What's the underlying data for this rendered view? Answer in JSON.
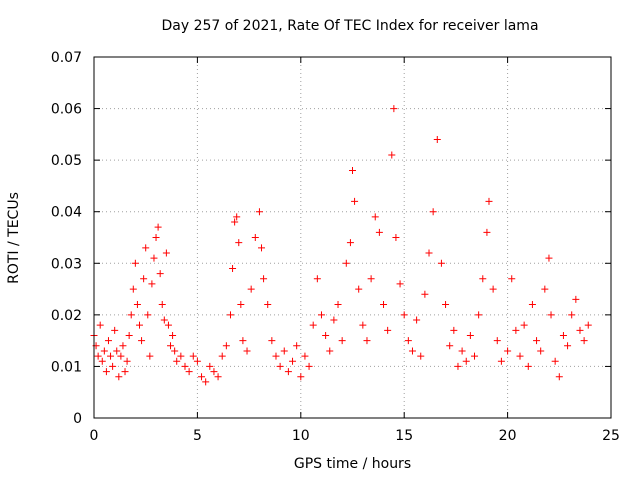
{
  "chart_data": {
    "type": "scatter",
    "title": "Day 257 of 2021, Rate Of TEC Index for receiver lama",
    "xlabel": "GPS time / hours",
    "ylabel": "ROTI / TECUs",
    "xlim": [
      0,
      25
    ],
    "ylim": [
      0,
      0.07
    ],
    "x_ticks": [
      0,
      5,
      10,
      15,
      20,
      25
    ],
    "x_tick_labels": [
      "0",
      "5",
      "10",
      "15",
      "20",
      "25"
    ],
    "y_ticks": [
      0,
      0.01,
      0.02,
      0.03,
      0.04,
      0.05,
      0.06,
      0.07
    ],
    "y_tick_labels": [
      "0",
      "0.01",
      "0.02",
      "0.03",
      "0.04",
      "0.05",
      "0.06",
      "0.07"
    ],
    "grid": true,
    "marker": "plus",
    "color": "#ff0000",
    "series": [
      {
        "name": "",
        "points": [
          [
            0.0,
            0.016
          ],
          [
            0.1,
            0.014
          ],
          [
            0.2,
            0.012
          ],
          [
            0.3,
            0.018
          ],
          [
            0.4,
            0.011
          ],
          [
            0.5,
            0.013
          ],
          [
            0.6,
            0.009
          ],
          [
            0.7,
            0.015
          ],
          [
            0.8,
            0.012
          ],
          [
            0.9,
            0.01
          ],
          [
            1.0,
            0.017
          ],
          [
            1.1,
            0.013
          ],
          [
            1.2,
            0.008
          ],
          [
            1.3,
            0.012
          ],
          [
            1.4,
            0.014
          ],
          [
            1.5,
            0.009
          ],
          [
            1.6,
            0.011
          ],
          [
            1.7,
            0.016
          ],
          [
            1.8,
            0.02
          ],
          [
            1.9,
            0.025
          ],
          [
            2.0,
            0.03
          ],
          [
            2.1,
            0.022
          ],
          [
            2.2,
            0.018
          ],
          [
            2.3,
            0.015
          ],
          [
            2.4,
            0.027
          ],
          [
            2.5,
            0.033
          ],
          [
            2.6,
            0.02
          ],
          [
            2.7,
            0.012
          ],
          [
            2.8,
            0.026
          ],
          [
            2.9,
            0.031
          ],
          [
            3.0,
            0.035
          ],
          [
            3.1,
            0.037
          ],
          [
            3.2,
            0.028
          ],
          [
            3.3,
            0.022
          ],
          [
            3.4,
            0.019
          ],
          [
            3.5,
            0.032
          ],
          [
            3.6,
            0.018
          ],
          [
            3.7,
            0.014
          ],
          [
            3.8,
            0.016
          ],
          [
            3.9,
            0.013
          ],
          [
            4.0,
            0.011
          ],
          [
            4.2,
            0.012
          ],
          [
            4.4,
            0.01
          ],
          [
            4.6,
            0.009
          ],
          [
            4.8,
            0.012
          ],
          [
            5.0,
            0.011
          ],
          [
            5.2,
            0.008
          ],
          [
            5.4,
            0.007
          ],
          [
            5.6,
            0.01
          ],
          [
            5.8,
            0.009
          ],
          [
            6.0,
            0.008
          ],
          [
            6.2,
            0.012
          ],
          [
            6.4,
            0.014
          ],
          [
            6.6,
            0.02
          ],
          [
            6.7,
            0.029
          ],
          [
            6.8,
            0.038
          ],
          [
            6.9,
            0.039
          ],
          [
            7.0,
            0.034
          ],
          [
            7.1,
            0.022
          ],
          [
            7.2,
            0.015
          ],
          [
            7.4,
            0.013
          ],
          [
            7.6,
            0.025
          ],
          [
            7.8,
            0.035
          ],
          [
            8.0,
            0.04
          ],
          [
            8.1,
            0.033
          ],
          [
            8.2,
            0.027
          ],
          [
            8.4,
            0.022
          ],
          [
            8.6,
            0.015
          ],
          [
            8.8,
            0.012
          ],
          [
            9.0,
            0.01
          ],
          [
            9.2,
            0.013
          ],
          [
            9.4,
            0.009
          ],
          [
            9.6,
            0.011
          ],
          [
            9.8,
            0.014
          ],
          [
            10.0,
            0.008
          ],
          [
            10.2,
            0.012
          ],
          [
            10.4,
            0.01
          ],
          [
            10.6,
            0.018
          ],
          [
            10.8,
            0.027
          ],
          [
            11.0,
            0.02
          ],
          [
            11.2,
            0.016
          ],
          [
            11.4,
            0.013
          ],
          [
            11.6,
            0.019
          ],
          [
            11.8,
            0.022
          ],
          [
            12.0,
            0.015
          ],
          [
            12.2,
            0.03
          ],
          [
            12.4,
            0.034
          ],
          [
            12.5,
            0.048
          ],
          [
            12.6,
            0.042
          ],
          [
            12.8,
            0.025
          ],
          [
            13.0,
            0.018
          ],
          [
            13.2,
            0.015
          ],
          [
            13.4,
            0.027
          ],
          [
            13.6,
            0.039
          ],
          [
            13.8,
            0.036
          ],
          [
            14.0,
            0.022
          ],
          [
            14.2,
            0.017
          ],
          [
            14.4,
            0.051
          ],
          [
            14.5,
            0.06
          ],
          [
            14.6,
            0.035
          ],
          [
            14.8,
            0.026
          ],
          [
            15.0,
            0.02
          ],
          [
            15.2,
            0.015
          ],
          [
            15.4,
            0.013
          ],
          [
            15.6,
            0.019
          ],
          [
            15.8,
            0.012
          ],
          [
            16.0,
            0.024
          ],
          [
            16.2,
            0.032
          ],
          [
            16.4,
            0.04
          ],
          [
            16.6,
            0.054
          ],
          [
            16.8,
            0.03
          ],
          [
            17.0,
            0.022
          ],
          [
            17.2,
            0.014
          ],
          [
            17.4,
            0.017
          ],
          [
            17.6,
            0.01
          ],
          [
            17.8,
            0.013
          ],
          [
            18.0,
            0.011
          ],
          [
            18.2,
            0.016
          ],
          [
            18.4,
            0.012
          ],
          [
            18.6,
            0.02
          ],
          [
            18.8,
            0.027
          ],
          [
            19.0,
            0.036
          ],
          [
            19.1,
            0.042
          ],
          [
            19.3,
            0.025
          ],
          [
            19.5,
            0.015
          ],
          [
            19.7,
            0.011
          ],
          [
            20.0,
            0.013
          ],
          [
            20.2,
            0.027
          ],
          [
            20.4,
            0.017
          ],
          [
            20.6,
            0.012
          ],
          [
            20.8,
            0.018
          ],
          [
            21.0,
            0.01
          ],
          [
            21.2,
            0.022
          ],
          [
            21.4,
            0.015
          ],
          [
            21.6,
            0.013
          ],
          [
            21.8,
            0.025
          ],
          [
            22.0,
            0.031
          ],
          [
            22.1,
            0.02
          ],
          [
            22.3,
            0.011
          ],
          [
            22.5,
            0.008
          ],
          [
            22.7,
            0.016
          ],
          [
            22.9,
            0.014
          ],
          [
            23.1,
            0.02
          ],
          [
            23.3,
            0.023
          ],
          [
            23.5,
            0.017
          ],
          [
            23.7,
            0.015
          ],
          [
            23.9,
            0.018
          ]
        ]
      }
    ]
  }
}
